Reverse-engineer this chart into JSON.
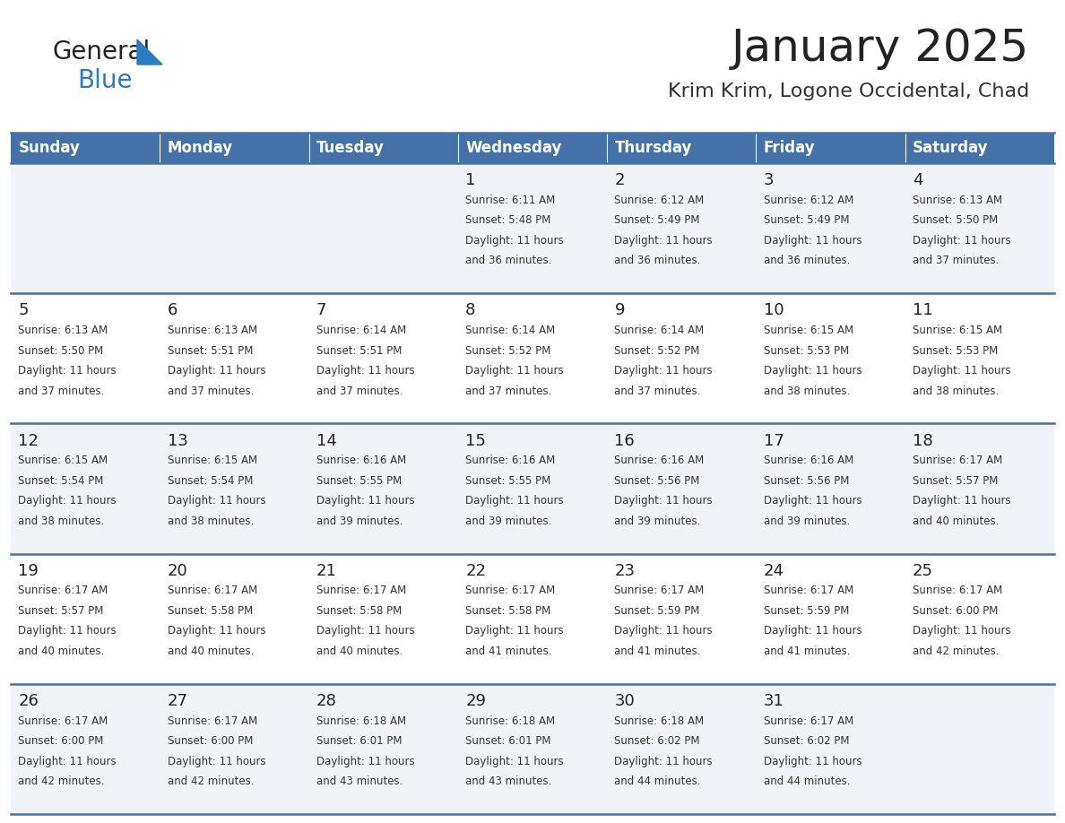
{
  "title": "January 2025",
  "subtitle": "Krim Krim, Logone Occidental, Chad",
  "header_bg_color": "#4472a8",
  "header_text_color": "#ffffff",
  "days_of_week": [
    "Sunday",
    "Monday",
    "Tuesday",
    "Wednesday",
    "Thursday",
    "Friday",
    "Saturday"
  ],
  "row_bg_even": "#f0f4f8",
  "row_bg_odd": "#ffffff",
  "cell_border_color": "#4472a8",
  "title_color": "#222222",
  "subtitle_color": "#333333",
  "day_number_color": "#222222",
  "cell_text_color": "#333333",
  "logo_general_color": "#222222",
  "logo_blue_color": "#2a7bbf",
  "logo_triangle_color": "#2a7bbf",
  "calendar": [
    [
      {
        "day": null,
        "sunrise": null,
        "sunset": null,
        "daylight_hours": null,
        "daylight_minutes": null
      },
      {
        "day": null,
        "sunrise": null,
        "sunset": null,
        "daylight_hours": null,
        "daylight_minutes": null
      },
      {
        "day": null,
        "sunrise": null,
        "sunset": null,
        "daylight_hours": null,
        "daylight_minutes": null
      },
      {
        "day": 1,
        "sunrise": "6:11 AM",
        "sunset": "5:48 PM",
        "daylight_hours": 11,
        "daylight_minutes": 36
      },
      {
        "day": 2,
        "sunrise": "6:12 AM",
        "sunset": "5:49 PM",
        "daylight_hours": 11,
        "daylight_minutes": 36
      },
      {
        "day": 3,
        "sunrise": "6:12 AM",
        "sunset": "5:49 PM",
        "daylight_hours": 11,
        "daylight_minutes": 36
      },
      {
        "day": 4,
        "sunrise": "6:13 AM",
        "sunset": "5:50 PM",
        "daylight_hours": 11,
        "daylight_minutes": 37
      }
    ],
    [
      {
        "day": 5,
        "sunrise": "6:13 AM",
        "sunset": "5:50 PM",
        "daylight_hours": 11,
        "daylight_minutes": 37
      },
      {
        "day": 6,
        "sunrise": "6:13 AM",
        "sunset": "5:51 PM",
        "daylight_hours": 11,
        "daylight_minutes": 37
      },
      {
        "day": 7,
        "sunrise": "6:14 AM",
        "sunset": "5:51 PM",
        "daylight_hours": 11,
        "daylight_minutes": 37
      },
      {
        "day": 8,
        "sunrise": "6:14 AM",
        "sunset": "5:52 PM",
        "daylight_hours": 11,
        "daylight_minutes": 37
      },
      {
        "day": 9,
        "sunrise": "6:14 AM",
        "sunset": "5:52 PM",
        "daylight_hours": 11,
        "daylight_minutes": 37
      },
      {
        "day": 10,
        "sunrise": "6:15 AM",
        "sunset": "5:53 PM",
        "daylight_hours": 11,
        "daylight_minutes": 38
      },
      {
        "day": 11,
        "sunrise": "6:15 AM",
        "sunset": "5:53 PM",
        "daylight_hours": 11,
        "daylight_minutes": 38
      }
    ],
    [
      {
        "day": 12,
        "sunrise": "6:15 AM",
        "sunset": "5:54 PM",
        "daylight_hours": 11,
        "daylight_minutes": 38
      },
      {
        "day": 13,
        "sunrise": "6:15 AM",
        "sunset": "5:54 PM",
        "daylight_hours": 11,
        "daylight_minutes": 38
      },
      {
        "day": 14,
        "sunrise": "6:16 AM",
        "sunset": "5:55 PM",
        "daylight_hours": 11,
        "daylight_minutes": 39
      },
      {
        "day": 15,
        "sunrise": "6:16 AM",
        "sunset": "5:55 PM",
        "daylight_hours": 11,
        "daylight_minutes": 39
      },
      {
        "day": 16,
        "sunrise": "6:16 AM",
        "sunset": "5:56 PM",
        "daylight_hours": 11,
        "daylight_minutes": 39
      },
      {
        "day": 17,
        "sunrise": "6:16 AM",
        "sunset": "5:56 PM",
        "daylight_hours": 11,
        "daylight_minutes": 39
      },
      {
        "day": 18,
        "sunrise": "6:17 AM",
        "sunset": "5:57 PM",
        "daylight_hours": 11,
        "daylight_minutes": 40
      }
    ],
    [
      {
        "day": 19,
        "sunrise": "6:17 AM",
        "sunset": "5:57 PM",
        "daylight_hours": 11,
        "daylight_minutes": 40
      },
      {
        "day": 20,
        "sunrise": "6:17 AM",
        "sunset": "5:58 PM",
        "daylight_hours": 11,
        "daylight_minutes": 40
      },
      {
        "day": 21,
        "sunrise": "6:17 AM",
        "sunset": "5:58 PM",
        "daylight_hours": 11,
        "daylight_minutes": 40
      },
      {
        "day": 22,
        "sunrise": "6:17 AM",
        "sunset": "5:58 PM",
        "daylight_hours": 11,
        "daylight_minutes": 41
      },
      {
        "day": 23,
        "sunrise": "6:17 AM",
        "sunset": "5:59 PM",
        "daylight_hours": 11,
        "daylight_minutes": 41
      },
      {
        "day": 24,
        "sunrise": "6:17 AM",
        "sunset": "5:59 PM",
        "daylight_hours": 11,
        "daylight_minutes": 41
      },
      {
        "day": 25,
        "sunrise": "6:17 AM",
        "sunset": "6:00 PM",
        "daylight_hours": 11,
        "daylight_minutes": 42
      }
    ],
    [
      {
        "day": 26,
        "sunrise": "6:17 AM",
        "sunset": "6:00 PM",
        "daylight_hours": 11,
        "daylight_minutes": 42
      },
      {
        "day": 27,
        "sunrise": "6:17 AM",
        "sunset": "6:00 PM",
        "daylight_hours": 11,
        "daylight_minutes": 42
      },
      {
        "day": 28,
        "sunrise": "6:18 AM",
        "sunset": "6:01 PM",
        "daylight_hours": 11,
        "daylight_minutes": 43
      },
      {
        "day": 29,
        "sunrise": "6:18 AM",
        "sunset": "6:01 PM",
        "daylight_hours": 11,
        "daylight_minutes": 43
      },
      {
        "day": 30,
        "sunrise": "6:18 AM",
        "sunset": "6:02 PM",
        "daylight_hours": 11,
        "daylight_minutes": 44
      },
      {
        "day": 31,
        "sunrise": "6:17 AM",
        "sunset": "6:02 PM",
        "daylight_hours": 11,
        "daylight_minutes": 44
      },
      {
        "day": null,
        "sunrise": null,
        "sunset": null,
        "daylight_hours": null,
        "daylight_minutes": null
      }
    ]
  ]
}
